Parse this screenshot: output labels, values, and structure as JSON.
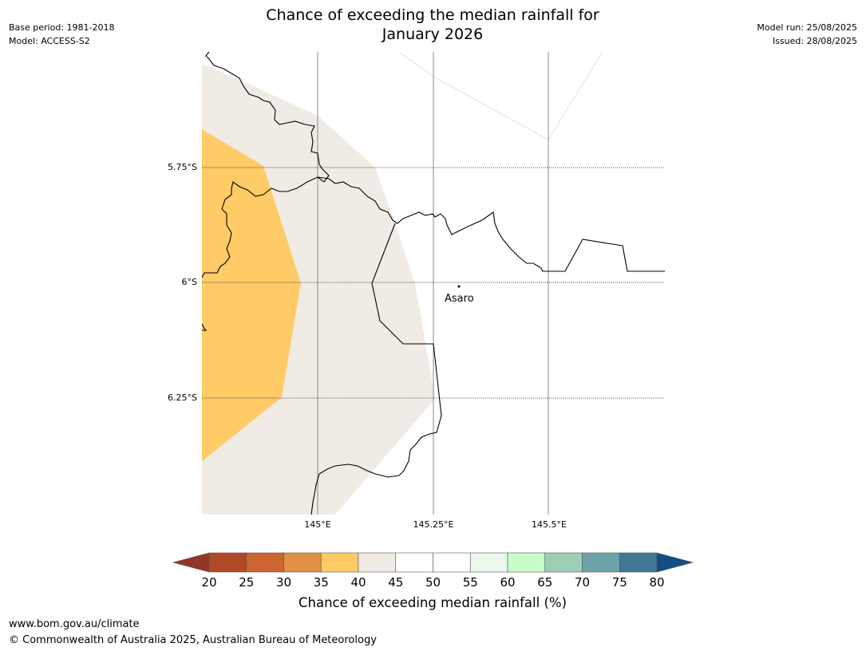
{
  "header": {
    "title_line1": "Chance of exceeding the median rainfall for",
    "title_line2": "January 2026",
    "base_period": "Base period: 1981-2018",
    "model": "Model: ACCESS-S2",
    "model_run": "Model run: 25/08/2025",
    "issued": "Issued: 28/08/2025"
  },
  "map": {
    "lat_labels": [
      "5.75°S",
      "6°S",
      "6.25°S"
    ],
    "lon_labels": [
      "145°E",
      "145.25°E",
      "145.5°E"
    ],
    "places": [
      {
        "name": "Asaro"
      }
    ],
    "region_colors": {
      "35-40": "#fecb66",
      "40-45": "#f0ebe5"
    }
  },
  "colorbar": {
    "title": "Chance of exceeding median rainfall (%)",
    "tick_labels": [
      "20",
      "25",
      "30",
      "35",
      "40",
      "45",
      "50",
      "55",
      "60",
      "65",
      "70",
      "75",
      "80"
    ],
    "low_extend_color": "#943627",
    "high_extend_color": "#134e85",
    "colors": [
      "#b04a26",
      "#cc6533",
      "#e19045",
      "#fecb66",
      "#f0ebe5",
      "#ffffff",
      "#ffffff",
      "#ebf7ea",
      "#c8fdca",
      "#9ccfb6",
      "#6da3a7",
      "#407796"
    ]
  },
  "footer": {
    "url": "www.bom.gov.au/climate",
    "copyright": "© Commonwealth of Australia 2025, Australian Bureau of Meteorology"
  }
}
